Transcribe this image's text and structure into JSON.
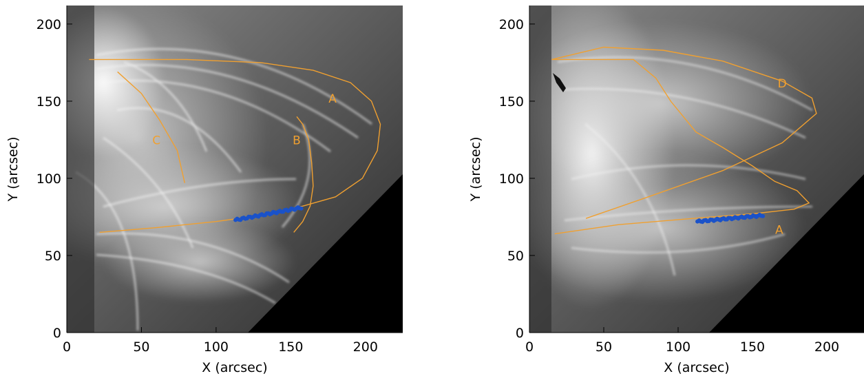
{
  "chart_data": [
    {
      "type": "scatter",
      "title": "",
      "xlabel": "X (arcsec)",
      "ylabel": "Y (arcsec)",
      "xlim": [
        0,
        225
      ],
      "ylim": [
        0,
        212
      ],
      "x_ticks": [
        "0",
        "50",
        "100",
        "150",
        "200"
      ],
      "y_ticks": [
        "0",
        "50",
        "100",
        "150",
        "200"
      ],
      "background": "grayscale solar EUV image of coronal loops",
      "loop_color": "#f0a030",
      "trace_color": "#1a52c9",
      "loops": [
        {
          "label": "A",
          "label_x": 178,
          "label_y": 149,
          "path": [
            [
              22,
              65
            ],
            [
              60,
              68
            ],
            [
              100,
              72
            ],
            [
              130,
              76
            ],
            [
              158,
              82
            ],
            [
              180,
              88
            ],
            [
              198,
              100
            ],
            [
              208,
              118
            ],
            [
              210,
              135
            ],
            [
              204,
              150
            ],
            [
              190,
              162
            ],
            [
              165,
              170
            ],
            [
              130,
              175
            ],
            [
              80,
              177
            ],
            [
              40,
              177
            ],
            [
              15,
              177
            ]
          ]
        },
        {
          "label": "B",
          "label_x": 154,
          "label_y": 122,
          "path": [
            [
              152,
              65
            ],
            [
              158,
              72
            ],
            [
              163,
              82
            ],
            [
              165,
              95
            ],
            [
              164,
              110
            ],
            [
              162,
              125
            ],
            [
              158,
              135
            ],
            [
              154,
              140
            ]
          ]
        },
        {
          "label": "C",
          "label_x": 60,
          "label_y": 122,
          "path": [
            [
              34,
              169
            ],
            [
              50,
              155
            ],
            [
              62,
              138
            ],
            [
              74,
              118
            ],
            [
              79,
              97
            ]
          ]
        }
      ],
      "trace": {
        "x_start": 113,
        "x_end": 157,
        "y_start": 73,
        "y_end": 81
      }
    },
    {
      "type": "scatter",
      "title": "",
      "xlabel": "X (arcsec)",
      "ylabel": "Y (arcsec)",
      "xlim": [
        0,
        225
      ],
      "ylim": [
        0,
        212
      ],
      "x_ticks": [
        "0",
        "50",
        "100",
        "150",
        "200"
      ],
      "y_ticks": [
        "0",
        "50",
        "100",
        "150",
        "200"
      ],
      "background": "grayscale solar EUV image of coronal loops",
      "loop_color": "#f0a030",
      "trace_color": "#1a52c9",
      "loops": [
        {
          "label": "A",
          "label_x": 168,
          "label_y": 64,
          "path": [
            [
              17,
              64
            ],
            [
              60,
              70
            ],
            [
              110,
              74
            ],
            [
              150,
              77
            ],
            [
              178,
              80
            ],
            [
              188,
              84
            ],
            [
              180,
              92
            ],
            [
              165,
              98
            ],
            [
              150,
              108
            ],
            [
              130,
              120
            ],
            [
              112,
              130
            ],
            [
              95,
              150
            ],
            [
              85,
              165
            ],
            [
              70,
              177
            ],
            [
              30,
              177
            ],
            [
              15,
              177
            ]
          ]
        },
        {
          "label": "D",
          "label_x": 170,
          "label_y": 159,
          "path": [
            [
              38,
              74
            ],
            [
              80,
              88
            ],
            [
              130,
              105
            ],
            [
              170,
              123
            ],
            [
              193,
              142
            ],
            [
              190,
              152
            ],
            [
              170,
              163
            ],
            [
              130,
              176
            ],
            [
              90,
              183
            ],
            [
              50,
              185
            ],
            [
              15,
              177
            ]
          ]
        }
      ],
      "trace": {
        "x_start": 113,
        "x_end": 157,
        "y_start": 72,
        "y_end": 76
      }
    }
  ]
}
